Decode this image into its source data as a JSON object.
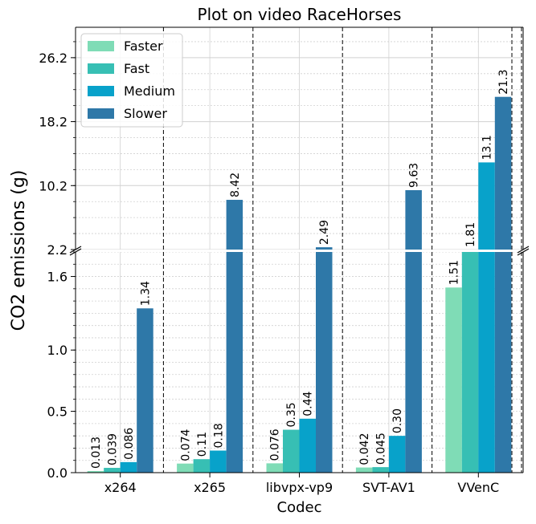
{
  "chart_data": {
    "type": "bar",
    "title": "Plot on video RaceHorses",
    "xlabel": "Codec",
    "ylabel": "CO2 emissions (g)",
    "categories": [
      "x264",
      "x265",
      "libvpx-vp9",
      "SVT-AV1",
      "VVenC"
    ],
    "series": [
      {
        "name": "Faster",
        "color": "#7fdcb6",
        "values": [
          0.013,
          0.074,
          0.076,
          0.042,
          1.51
        ],
        "labels": [
          "0.013",
          "0.074",
          "0.076",
          "0.042",
          "1.51"
        ]
      },
      {
        "name": "Fast",
        "color": "#37bfb4",
        "values": [
          0.039,
          0.11,
          0.35,
          0.045,
          1.81
        ],
        "labels": [
          "0.039",
          "0.11",
          "0.35",
          "0.045",
          "1.81"
        ]
      },
      {
        "name": "Medium",
        "color": "#08a2ca",
        "values": [
          0.086,
          0.18,
          0.44,
          0.3,
          13.1
        ],
        "labels": [
          "0.086",
          "0.18",
          "0.44",
          "0.30",
          "13.1"
        ]
      },
      {
        "name": "Slower",
        "color": "#2e78a8",
        "values": [
          1.34,
          8.42,
          2.49,
          9.63,
          21.3
        ],
        "labels": [
          "1.34",
          "8.42",
          "2.49",
          "9.63",
          "21.3"
        ]
      }
    ],
    "y_axis": {
      "broken": true,
      "lower_range": [
        0.0,
        1.8
      ],
      "upper_range": [
        2.2,
        30.0
      ],
      "lower_ticks": [
        "0.0",
        "0.5",
        "1.0",
        "1.6"
      ],
      "upper_ticks": [
        "2.2",
        "10.2",
        "18.2",
        "26.2"
      ]
    },
    "grid": true,
    "legend_position": "top-left"
  }
}
